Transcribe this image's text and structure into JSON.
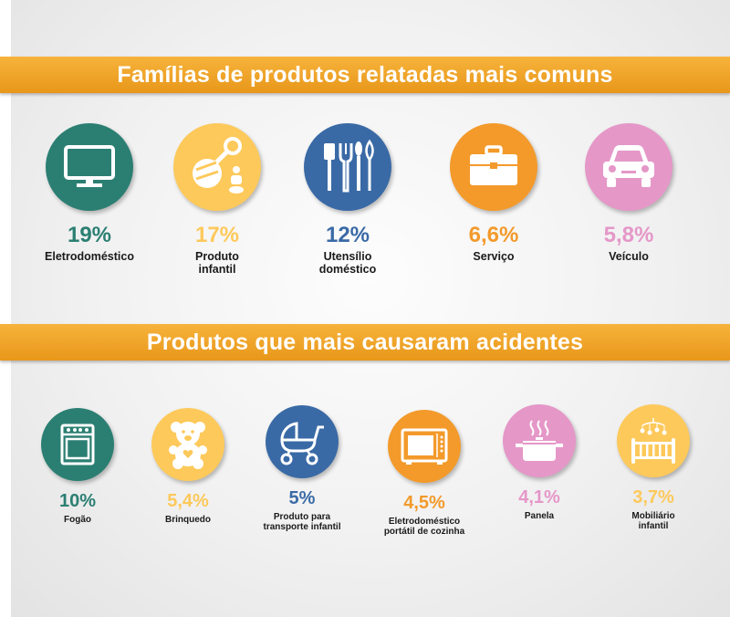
{
  "section1": {
    "title": "Famílias de produtos relatadas mais comuns",
    "items": [
      {
        "percent": "19%",
        "label": "Eletrodoméstico",
        "icon": "tv-monitor-icon",
        "color": "#2b7f72"
      },
      {
        "percent": "17%",
        "label": "Produto infantil",
        "icon": "rattle-pacifier-icon",
        "color": "#fdc95b"
      },
      {
        "percent": "12%",
        "label": "Utensílio doméstico",
        "icon": "kitchen-utensils-icon",
        "color": "#3a6aa6"
      },
      {
        "percent": "6,6%",
        "label": "Serviço",
        "icon": "briefcase-icon",
        "color": "#f39a2b"
      },
      {
        "percent": "5,8%",
        "label": "Veículo",
        "icon": "car-icon",
        "color": "#e597c8"
      }
    ]
  },
  "section2": {
    "title": "Produtos que mais causaram acidentes",
    "items": [
      {
        "percent": "10%",
        "label": "Fogão",
        "icon": "stove-icon",
        "color": "#2b7f72"
      },
      {
        "percent": "5,4%",
        "label": "Brinquedo",
        "icon": "teddy-bear-icon",
        "color": "#fdc95b"
      },
      {
        "percent": "5%",
        "label": "Produto para transporte infantil",
        "icon": "baby-stroller-icon",
        "color": "#3a6aa6"
      },
      {
        "percent": "4,5%",
        "label": "Eletrodoméstico portátil de cozinha",
        "icon": "microwave-icon",
        "color": "#f39a2b"
      },
      {
        "percent": "4,1%",
        "label": "Panela",
        "icon": "cooking-pot-icon",
        "color": "#e597c8"
      },
      {
        "percent": "3,7%",
        "label": "Mobiliário infantil",
        "icon": "crib-mobile-icon",
        "color": "#fdc95b"
      }
    ]
  }
}
